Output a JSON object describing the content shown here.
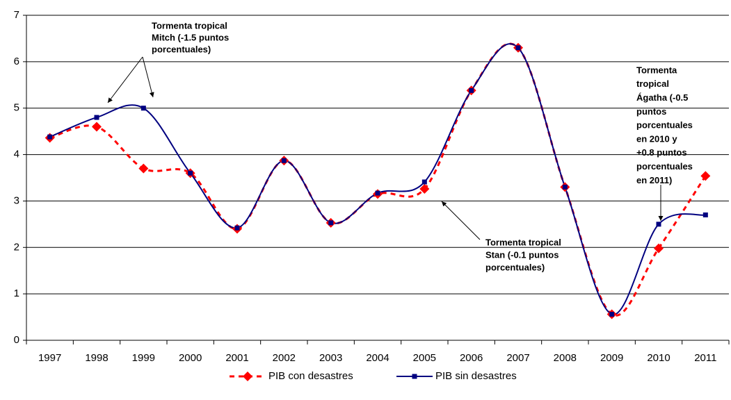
{
  "chart_data": {
    "type": "line",
    "categories": [
      "1997",
      "1998",
      "1999",
      "2000",
      "2001",
      "2002",
      "2003",
      "2004",
      "2005",
      "2006",
      "2007",
      "2008",
      "2009",
      "2010",
      "2011"
    ],
    "series": [
      {
        "name": "PIB con desastres",
        "color": "#ff0000",
        "values": [
          4.36,
          4.6,
          3.7,
          3.6,
          2.4,
          3.87,
          2.53,
          3.15,
          3.26,
          5.38,
          6.3,
          3.3,
          0.56,
          1.98,
          3.54
        ]
      },
      {
        "name": "PIB sin desastres",
        "color": "#000080",
        "values": [
          4.38,
          4.8,
          5.0,
          3.6,
          2.42,
          3.87,
          2.53,
          3.17,
          3.41,
          5.38,
          6.3,
          3.3,
          0.56,
          2.5,
          2.7
        ]
      }
    ],
    "ylim": [
      0,
      7
    ],
    "yticks": [
      0,
      1,
      2,
      3,
      4,
      5,
      6,
      7
    ],
    "grid": true,
    "legend": "bottom",
    "annotations": [
      {
        "text": [
          "Tormenta tropical",
          "Mitch (-1.5 puntos",
          "porcentuales)"
        ]
      },
      {
        "text": [
          "Tormenta tropical",
          "Stan (-0.1 puntos",
          "porcentuales)"
        ]
      },
      {
        "text": [
          "Tormenta",
          "tropical",
          "Ágatha (-0.5",
          "puntos",
          "porcentuales",
          "en 2010 y",
          "+0.8 puntos",
          "porcentuales",
          "en 2011)"
        ]
      }
    ]
  }
}
